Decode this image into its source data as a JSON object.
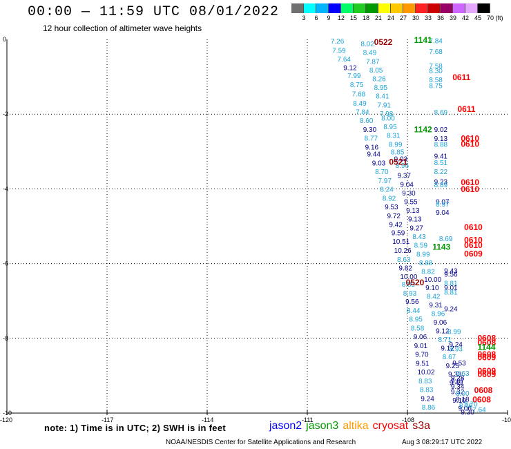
{
  "title": "00:00 — 11:59 UTC 08/01/2022",
  "subtitle": "12 hour collection of altimeter wave heights",
  "colorbar": {
    "colors": [
      "#707070",
      "#00ffff",
      "#00b4ff",
      "#0000ff",
      "#00ff66",
      "#22cc22",
      "#009900",
      "#ffff00",
      "#ffc800",
      "#ff9900",
      "#ff2222",
      "#cc0000",
      "#990066",
      "#cc66ff",
      "#e4a8ff",
      "#000000"
    ],
    "labels": [
      "3",
      "6",
      "9",
      "12",
      "15",
      "18",
      "21",
      "24",
      "27",
      "30",
      "33",
      "36",
      "39",
      "42",
      "45",
      "70"
    ],
    "unit": "(ft)"
  },
  "note": "note: 1) Time is in UTC; 2) SWH is in feet",
  "legend": [
    {
      "name": "jason2",
      "color": "#0000ff"
    },
    {
      "name": "jason3",
      "color": "#009900"
    },
    {
      "name": "altika",
      "color": "#ff9900"
    },
    {
      "name": "cryosat",
      "color": "#ff0000"
    },
    {
      "name": "s3a",
      "color": "#990000"
    }
  ],
  "credit": "NOAA/NESDIS Center for Satellite Applications and Research",
  "stamp": "Aug  3 08:29:17 UTC 2022",
  "chart_data": {
    "type": "scatter",
    "xlim": [
      -120,
      -105
    ],
    "ylim": [
      -10,
      0
    ],
    "x_ticks": [
      -120,
      -117,
      -114,
      -111,
      -108,
      -105
    ],
    "x_tick_labels": [
      "-120",
      "-117",
      "-114",
      "-111",
      "-108",
      "-105"
    ],
    "y_ticks": [
      0,
      -2,
      -4,
      -6,
      -8,
      -10
    ],
    "y_tick_labels": [
      "0",
      "-2",
      "-4",
      "-6",
      "-8",
      "-10"
    ],
    "grid": true,
    "colors": {
      "light": "#1aa3d8",
      "dark": "#00008b",
      "cryosat": "#ff0000",
      "jason3": "#009900",
      "s3a": "#990000"
    },
    "observations": [
      {
        "x": -110.3,
        "y": -0.04,
        "v": "7.26",
        "c": "light"
      },
      {
        "x": -110.25,
        "y": -0.29,
        "v": "7.59",
        "c": "light"
      },
      {
        "x": -110.1,
        "y": -0.52,
        "v": "7.64",
        "c": "light"
      },
      {
        "x": -109.92,
        "y": -0.75,
        "v": "9.12",
        "c": "dark"
      },
      {
        "x": -109.8,
        "y": -0.96,
        "v": "7.99",
        "c": "light"
      },
      {
        "x": -109.72,
        "y": -1.2,
        "v": "8.75",
        "c": "light"
      },
      {
        "x": -109.66,
        "y": -1.45,
        "v": "7.68",
        "c": "light"
      },
      {
        "x": -109.63,
        "y": -1.7,
        "v": "8.49",
        "c": "light"
      },
      {
        "x": -109.55,
        "y": -1.93,
        "v": "7.84",
        "c": "light"
      },
      {
        "x": -109.43,
        "y": -2.16,
        "v": "8.60",
        "c": "light"
      },
      {
        "x": -109.33,
        "y": -2.4,
        "v": "9.30",
        "c": "dark"
      },
      {
        "x": -109.29,
        "y": -2.63,
        "v": "8.77",
        "c": "light"
      },
      {
        "x": -109.27,
        "y": -2.87,
        "v": "9.16",
        "c": "dark"
      },
      {
        "x": -109.21,
        "y": -3.06,
        "v": "9.44",
        "c": "dark"
      },
      {
        "x": -109.06,
        "y": -3.3,
        "v": "9.03",
        "c": "dark"
      },
      {
        "x": -108.97,
        "y": -3.53,
        "v": "8.70",
        "c": "light"
      },
      {
        "x": -108.88,
        "y": -3.77,
        "v": "7.97",
        "c": "light"
      },
      {
        "x": -108.82,
        "y": -4.0,
        "v": "8.24",
        "c": "light"
      },
      {
        "x": -108.75,
        "y": -4.24,
        "v": "8.92",
        "c": "light"
      },
      {
        "x": -108.68,
        "y": -4.47,
        "v": "9.53",
        "c": "dark"
      },
      {
        "x": -108.61,
        "y": -4.71,
        "v": "9.72",
        "c": "dark"
      },
      {
        "x": -108.55,
        "y": -4.94,
        "v": "9.42",
        "c": "dark"
      },
      {
        "x": -108.48,
        "y": -5.17,
        "v": "9.59",
        "c": "dark"
      },
      {
        "x": -108.45,
        "y": -5.4,
        "v": "10.51",
        "c": "dark"
      },
      {
        "x": -108.4,
        "y": -5.64,
        "v": "10.26",
        "c": "dark"
      },
      {
        "x": -108.31,
        "y": -5.88,
        "v": "8.63",
        "c": "light"
      },
      {
        "x": -108.26,
        "y": -6.11,
        "v": "9.82",
        "c": "dark"
      },
      {
        "x": -108.22,
        "y": -6.34,
        "v": "10.00",
        "c": "dark"
      },
      {
        "x": -108.17,
        "y": -6.54,
        "v": "8.89",
        "c": "light"
      },
      {
        "x": -108.13,
        "y": -6.78,
        "v": "8.93",
        "c": "light"
      },
      {
        "x": -108.06,
        "y": -7.01,
        "v": "9.56",
        "c": "dark"
      },
      {
        "x": -108.02,
        "y": -7.25,
        "v": "8.44",
        "c": "light"
      },
      {
        "x": -107.95,
        "y": -7.48,
        "v": "8.95",
        "c": "light"
      },
      {
        "x": -107.9,
        "y": -7.72,
        "v": "8.58",
        "c": "light"
      },
      {
        "x": -107.82,
        "y": -7.95,
        "v": "9.06",
        "c": "dark"
      },
      {
        "x": -107.8,
        "y": -8.19,
        "v": "9.01",
        "c": "dark"
      },
      {
        "x": -107.77,
        "y": -8.42,
        "v": "9.70",
        "c": "dark"
      },
      {
        "x": -107.75,
        "y": -8.66,
        "v": "9.51",
        "c": "dark"
      },
      {
        "x": -107.7,
        "y": -8.89,
        "v": "10.02",
        "c": "dark"
      },
      {
        "x": -107.67,
        "y": -9.13,
        "v": "8.83",
        "c": "light"
      },
      {
        "x": -107.63,
        "y": -9.36,
        "v": "8.83",
        "c": "light"
      },
      {
        "x": -107.6,
        "y": -9.6,
        "v": "9.24",
        "c": "dark"
      },
      {
        "x": -107.57,
        "y": -9.83,
        "v": "8.86",
        "c": "light"
      },
      {
        "x": -109.4,
        "y": -0.11,
        "v": "8.02",
        "c": "light"
      },
      {
        "x": -109.33,
        "y": -0.34,
        "v": "8.49",
        "c": "light"
      },
      {
        "x": -109.24,
        "y": -0.58,
        "v": "7.87",
        "c": "light"
      },
      {
        "x": -109.14,
        "y": -0.81,
        "v": "8.05",
        "c": "light"
      },
      {
        "x": -109.05,
        "y": -1.04,
        "v": "8.26",
        "c": "light"
      },
      {
        "x": -109.0,
        "y": -1.28,
        "v": "8.95",
        "c": "light"
      },
      {
        "x": -108.95,
        "y": -1.51,
        "v": "8.41",
        "c": "light"
      },
      {
        "x": -108.9,
        "y": -1.75,
        "v": "7.91",
        "c": "light"
      },
      {
        "x": -108.83,
        "y": -1.98,
        "v": "7.98",
        "c": "light"
      },
      {
        "x": -108.78,
        "y": -2.1,
        "v": "8.00",
        "c": "light"
      },
      {
        "x": -108.72,
        "y": -2.33,
        "v": "8.95",
        "c": "light"
      },
      {
        "x": -108.62,
        "y": -2.56,
        "v": "8.31",
        "c": "light"
      },
      {
        "x": -108.56,
        "y": -2.8,
        "v": "8.99",
        "c": "light"
      },
      {
        "x": -108.5,
        "y": -3.0,
        "v": "8.85",
        "c": "light"
      },
      {
        "x": -108.4,
        "y": -3.19,
        "v": "9.03",
        "c": "dark"
      },
      {
        "x": -108.36,
        "y": -3.36,
        "v": "8.96",
        "c": "light"
      },
      {
        "x": -108.3,
        "y": -3.63,
        "v": "9.37",
        "c": "dark"
      },
      {
        "x": -108.22,
        "y": -3.87,
        "v": "9.04",
        "c": "dark"
      },
      {
        "x": -108.16,
        "y": -4.1,
        "v": "9.30",
        "c": "dark"
      },
      {
        "x": -108.1,
        "y": -4.33,
        "v": "9.55",
        "c": "dark"
      },
      {
        "x": -108.04,
        "y": -4.57,
        "v": "9.13",
        "c": "dark"
      },
      {
        "x": -107.98,
        "y": -4.8,
        "v": "9.13",
        "c": "dark"
      },
      {
        "x": -107.93,
        "y": -5.04,
        "v": "9.27",
        "c": "dark"
      },
      {
        "x": -107.85,
        "y": -5.27,
        "v": "8.43",
        "c": "light"
      },
      {
        "x": -107.8,
        "y": -5.5,
        "v": "8.59",
        "c": "light"
      },
      {
        "x": -107.73,
        "y": -5.74,
        "v": "8.99",
        "c": "light"
      },
      {
        "x": -107.65,
        "y": -5.97,
        "v": "8.88",
        "c": "light"
      },
      {
        "x": -107.58,
        "y": -6.2,
        "v": "8.82",
        "c": "light"
      },
      {
        "x": -107.5,
        "y": -6.41,
        "v": "10.00",
        "c": "dark"
      },
      {
        "x": -107.46,
        "y": -6.64,
        "v": "9.10",
        "c": "dark"
      },
      {
        "x": -107.42,
        "y": -6.87,
        "v": "8.42",
        "c": "light"
      },
      {
        "x": -107.35,
        "y": -7.1,
        "v": "9.31",
        "c": "dark"
      },
      {
        "x": -107.28,
        "y": -7.33,
        "v": "8.96",
        "c": "light"
      },
      {
        "x": -107.22,
        "y": -7.56,
        "v": "9.06",
        "c": "dark"
      },
      {
        "x": -107.15,
        "y": -7.79,
        "v": "9.12",
        "c": "dark"
      },
      {
        "x": -107.08,
        "y": -8.02,
        "v": "8.71",
        "c": "light"
      },
      {
        "x": -107.0,
        "y": -8.25,
        "v": "9.12",
        "c": "dark"
      },
      {
        "x": -106.95,
        "y": -8.48,
        "v": "8.67",
        "c": "light"
      },
      {
        "x": -106.85,
        "y": -8.72,
        "v": "9.25",
        "c": "dark"
      },
      {
        "x": -106.78,
        "y": -8.95,
        "v": "9.33",
        "c": "dark"
      },
      {
        "x": -106.74,
        "y": -9.18,
        "v": "9.49",
        "c": "dark"
      },
      {
        "x": -106.7,
        "y": -9.42,
        "v": "9.32",
        "c": "dark"
      },
      {
        "x": -106.65,
        "y": -9.65,
        "v": "9.10",
        "c": "dark"
      },
      {
        "x": -107.35,
        "y": -0.03,
        "v": "7.84",
        "c": "light"
      },
      {
        "x": -107.35,
        "y": -0.31,
        "v": "7.68",
        "c": "light"
      },
      {
        "x": -107.35,
        "y": -0.7,
        "v": "7.58",
        "c": "light"
      },
      {
        "x": -107.35,
        "y": -0.83,
        "v": "8.30",
        "c": "light"
      },
      {
        "x": -107.35,
        "y": -1.07,
        "v": "8.58",
        "c": "light"
      },
      {
        "x": -107.35,
        "y": -1.23,
        "v": "8.75",
        "c": "light"
      },
      {
        "x": -107.2,
        "y": -1.94,
        "v": "8.69",
        "c": "light"
      },
      {
        "x": -107.2,
        "y": -2.4,
        "v": "9.02",
        "c": "dark"
      },
      {
        "x": -107.2,
        "y": -2.64,
        "v": "9.13",
        "c": "dark"
      },
      {
        "x": -107.2,
        "y": -2.8,
        "v": "8.88",
        "c": "light"
      },
      {
        "x": -107.2,
        "y": -3.11,
        "v": "9.41",
        "c": "dark"
      },
      {
        "x": -107.2,
        "y": -3.29,
        "v": "8.51",
        "c": "light"
      },
      {
        "x": -107.2,
        "y": -3.53,
        "v": "8.22",
        "c": "light"
      },
      {
        "x": -107.2,
        "y": -3.8,
        "v": "9.23",
        "c": "dark"
      },
      {
        "x": -107.2,
        "y": -3.88,
        "v": "8.89",
        "c": "light"
      },
      {
        "x": -107.15,
        "y": -4.33,
        "v": "9.07",
        "c": "dark"
      },
      {
        "x": -107.15,
        "y": -4.4,
        "v": "8.97",
        "c": "light"
      },
      {
        "x": -107.15,
        "y": -4.62,
        "v": "9.04",
        "c": "dark"
      },
      {
        "x": -107.05,
        "y": -5.32,
        "v": "8.69",
        "c": "light"
      },
      {
        "x": -106.9,
        "y": -6.18,
        "v": "9.43",
        "c": "dark"
      },
      {
        "x": -106.9,
        "y": -6.28,
        "v": "9.56",
        "c": "dark"
      },
      {
        "x": -106.9,
        "y": -6.52,
        "v": "8.81",
        "c": "light"
      },
      {
        "x": -106.9,
        "y": -6.64,
        "v": "9.01",
        "c": "dark"
      },
      {
        "x": -106.9,
        "y": -6.76,
        "v": "8.81",
        "c": "light"
      },
      {
        "x": -106.9,
        "y": -7.2,
        "v": "9.24",
        "c": "dark"
      },
      {
        "x": -106.8,
        "y": -7.81,
        "v": "8.99",
        "c": "light"
      },
      {
        "x": -106.75,
        "y": -8.15,
        "v": "9.24",
        "c": "dark"
      },
      {
        "x": -106.75,
        "y": -8.27,
        "v": "8.93",
        "c": "light"
      },
      {
        "x": -106.65,
        "y": -8.65,
        "v": "9.53",
        "c": "dark"
      },
      {
        "x": -106.55,
        "y": -8.93,
        "v": "9.63",
        "c": "light"
      },
      {
        "x": -106.7,
        "y": -9.05,
        "v": "9.28",
        "c": "dark"
      },
      {
        "x": -106.7,
        "y": -9.13,
        "v": "9.07",
        "c": "dark"
      },
      {
        "x": -106.7,
        "y": -9.28,
        "v": "9.34",
        "c": "dark"
      },
      {
        "x": -106.55,
        "y": -9.46,
        "v": "8.00",
        "c": "light"
      },
      {
        "x": -106.55,
        "y": -9.62,
        "v": "8.18",
        "c": "dark"
      },
      {
        "x": -106.45,
        "y": -9.79,
        "v": "8.16",
        "c": "light"
      },
      {
        "x": -106.48,
        "y": -9.86,
        "v": "9.06",
        "c": "dark"
      },
      {
        "x": -106.4,
        "y": -9.96,
        "v": "9.30",
        "c": "dark"
      },
      {
        "x": -106.05,
        "y": -9.9,
        "v": "7.64",
        "c": "light"
      },
      {
        "x": -106.3,
        "y": -9.75,
        "v": "8.70",
        "c": "light"
      }
    ],
    "pass_labels": [
      {
        "x": -109.0,
        "y": -0.06,
        "v": "0522",
        "c": "s3a"
      },
      {
        "x": -107.8,
        "y": 0.0,
        "v": "1141",
        "c": "jason3"
      },
      {
        "x": -106.65,
        "y": -1.0,
        "v": "0611",
        "c": "cryosat"
      },
      {
        "x": -106.5,
        "y": -1.85,
        "v": "0611",
        "c": "cryosat"
      },
      {
        "x": -107.8,
        "y": -2.39,
        "v": "1142",
        "c": "jason3"
      },
      {
        "x": -106.4,
        "y": -2.63,
        "v": "0610",
        "c": "cryosat"
      },
      {
        "x": -106.4,
        "y": -2.78,
        "v": "0610",
        "c": "cryosat"
      },
      {
        "x": -108.55,
        "y": -3.26,
        "v": "0521",
        "c": "s3a"
      },
      {
        "x": -106.4,
        "y": -3.81,
        "v": "0610",
        "c": "cryosat"
      },
      {
        "x": -106.4,
        "y": -3.99,
        "v": "0610",
        "c": "cryosat"
      },
      {
        "x": -107.25,
        "y": -5.54,
        "v": "1143",
        "c": "jason3"
      },
      {
        "x": -106.3,
        "y": -5.01,
        "v": "0610",
        "c": "cryosat"
      },
      {
        "x": -106.3,
        "y": -5.35,
        "v": "0610",
        "c": "cryosat"
      },
      {
        "x": -106.3,
        "y": -5.49,
        "v": "0610",
        "c": "cryosat"
      },
      {
        "x": -106.3,
        "y": -5.72,
        "v": "0609",
        "c": "cryosat"
      },
      {
        "x": -108.05,
        "y": -6.49,
        "v": "0520",
        "c": "s3a"
      },
      {
        "x": -105.9,
        "y": -7.98,
        "v": "0608",
        "c": "cryosat"
      },
      {
        "x": -105.9,
        "y": -8.1,
        "v": "0608",
        "c": "cryosat"
      },
      {
        "x": -105.9,
        "y": -8.22,
        "v": "1144",
        "c": "jason3"
      },
      {
        "x": -105.9,
        "y": -8.41,
        "v": "0608",
        "c": "cryosat"
      },
      {
        "x": -105.9,
        "y": -8.49,
        "v": "0609",
        "c": "cryosat"
      },
      {
        "x": -105.9,
        "y": -8.85,
        "v": "0609",
        "c": "cryosat"
      },
      {
        "x": -105.9,
        "y": -8.95,
        "v": "0609",
        "c": "cryosat"
      },
      {
        "x": -106.0,
        "y": -9.37,
        "v": "0608",
        "c": "cryosat"
      },
      {
        "x": -106.05,
        "y": -9.62,
        "v": "0608",
        "c": "cryosat"
      }
    ]
  }
}
